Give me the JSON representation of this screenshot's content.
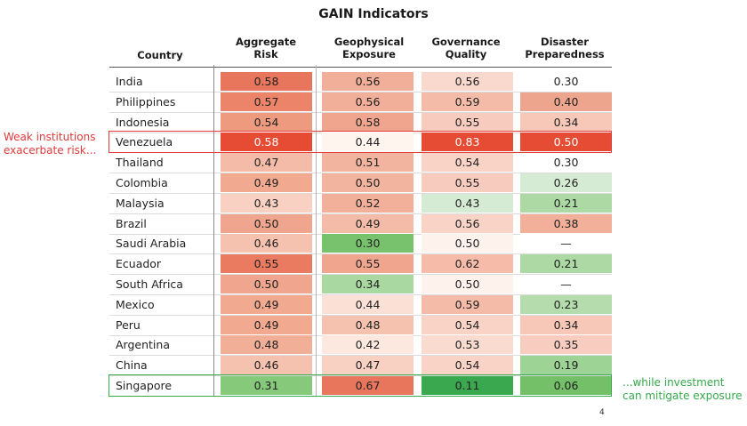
{
  "chart_data": {
    "type": "table",
    "title": "GAIN Indicators",
    "columns": [
      {
        "key": "country",
        "label": [
          "Country"
        ]
      },
      {
        "key": "aggregate_risk",
        "label": [
          "Aggregate",
          "Risk"
        ]
      },
      {
        "key": "geophysical_exposure",
        "label": [
          "Geophysical",
          "Exposure"
        ]
      },
      {
        "key": "governance_quality",
        "label": [
          "Governance",
          "Quality"
        ]
      },
      {
        "key": "disaster_preparedness",
        "label": [
          "Disaster",
          "Preparedness"
        ]
      }
    ],
    "rows": [
      {
        "country": "India",
        "values": [
          "0.58",
          "0.56",
          "0.56",
          "0.30"
        ]
      },
      {
        "country": "Philippines",
        "values": [
          "0.57",
          "0.56",
          "0.59",
          "0.40"
        ]
      },
      {
        "country": "Indonesia",
        "values": [
          "0.54",
          "0.58",
          "0.55",
          "0.34"
        ]
      },
      {
        "country": "Venezuela",
        "values": [
          "0.58",
          "0.44",
          "0.83",
          "0.50"
        ]
      },
      {
        "country": "Thailand",
        "values": [
          "0.47",
          "0.51",
          "0.54",
          "0.30"
        ]
      },
      {
        "country": "Colombia",
        "values": [
          "0.49",
          "0.50",
          "0.55",
          "0.26"
        ]
      },
      {
        "country": "Malaysia",
        "values": [
          "0.43",
          "0.52",
          "0.43",
          "0.21"
        ]
      },
      {
        "country": "Brazil",
        "values": [
          "0.50",
          "0.49",
          "0.56",
          "0.38"
        ]
      },
      {
        "country": "Saudi Arabia",
        "values": [
          "0.46",
          "0.30",
          "0.50",
          "—"
        ]
      },
      {
        "country": "Ecuador",
        "values": [
          "0.55",
          "0.55",
          "0.62",
          "0.21"
        ]
      },
      {
        "country": "South Africa",
        "values": [
          "0.50",
          "0.34",
          "0.50",
          "—"
        ]
      },
      {
        "country": "Mexico",
        "values": [
          "0.49",
          "0.44",
          "0.59",
          "0.23"
        ]
      },
      {
        "country": "Peru",
        "values": [
          "0.49",
          "0.48",
          "0.54",
          "0.34"
        ]
      },
      {
        "country": "Argentina",
        "values": [
          "0.48",
          "0.42",
          "0.53",
          "0.35"
        ]
      },
      {
        "country": "China",
        "values": [
          "0.46",
          "0.47",
          "0.54",
          "0.19"
        ]
      },
      {
        "country": "Singapore",
        "values": [
          "0.31",
          "0.67",
          "0.11",
          "0.06"
        ]
      }
    ],
    "cell_colors": [
      [
        "#e8765c",
        "#f1ae98",
        "#f9d9cd",
        "#ffffff"
      ],
      [
        "#eb8468",
        "#f1ae98",
        "#f4bba8",
        "#eea58d"
      ],
      [
        "#ee9a7e",
        "#f0a68e",
        "#f7cbbd",
        "#f7c8b8"
      ],
      [
        "#e64b33",
        "#fef5ee",
        "#e64b33",
        "#e64b33"
      ],
      [
        "#f4bba8",
        "#f2b49f",
        "#f9d3c6",
        "#ffffff"
      ],
      [
        "#f1a990",
        "#f2b49f",
        "#f7cbbd",
        "#d6ebd3"
      ],
      [
        "#f9d1c3",
        "#f2b09a",
        "#d6ebd3",
        "#acd9a4"
      ],
      [
        "#f0a68e",
        "#f4bba8",
        "#f9d3c6",
        "#f2b09a"
      ],
      [
        "#f6c2b0",
        "#79c26d",
        "#fef2ec",
        "#ffffff"
      ],
      [
        "#ea7b61",
        "#f0a68e",
        "#f6bca9",
        "#acd9a4"
      ],
      [
        "#f0a68e",
        "#a9d8a0",
        "#fef2ec",
        "#ffffff"
      ],
      [
        "#f1a990",
        "#fbe0d6",
        "#f4bba8",
        "#b4dcac"
      ],
      [
        "#f1a990",
        "#f6c2b0",
        "#f9d3c6",
        "#f7c8b8"
      ],
      [
        "#f2af98",
        "#fde8df",
        "#fadbd0",
        "#f8cdbf"
      ],
      [
        "#f6c2b0",
        "#f9d1c3",
        "#f9d3c6",
        "#9dd394"
      ],
      [
        "#86c97a",
        "#e8765c",
        "#3aa84e",
        "#74c068"
      ]
    ],
    "white_text": [
      [
        3,
        0
      ],
      [
        3,
        2
      ],
      [
        3,
        3
      ]
    ],
    "highlights": [
      {
        "row": 3,
        "color": "#e03a3a"
      },
      {
        "row": 15,
        "color": "#35a94c"
      }
    ]
  },
  "annotations": {
    "red": [
      "Weak institutions",
      "exacerbate risk..."
    ],
    "green": [
      "...while investment",
      "can mitigate exposure"
    ]
  },
  "page_number": "4"
}
